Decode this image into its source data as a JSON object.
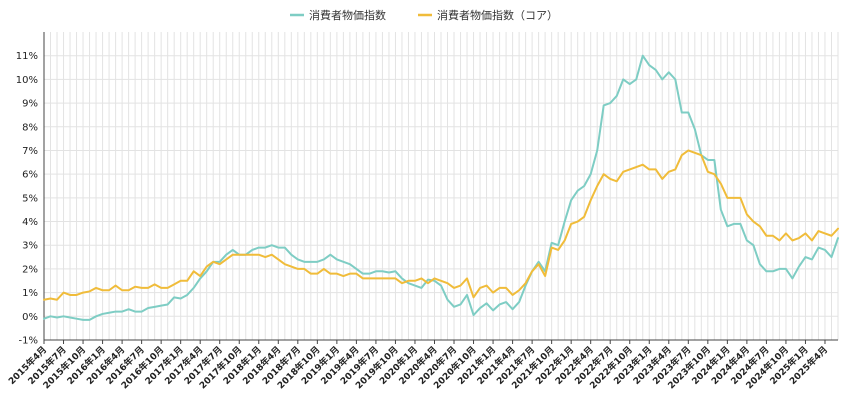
{
  "chart_data": {
    "type": "line",
    "title": "",
    "xlabel": "",
    "ylabel": "",
    "ylim": [
      -1,
      12
    ],
    "y_ticks": [
      -1,
      0,
      1,
      2,
      3,
      4,
      5,
      6,
      7,
      8,
      9,
      10,
      11
    ],
    "y_tick_labels": [
      "-1%",
      "0%",
      "1%",
      "2%",
      "3%",
      "4%",
      "5%",
      "6%",
      "7%",
      "8%",
      "9%",
      "10%",
      "11%"
    ],
    "grid": true,
    "legend_position": "top-center",
    "x_tick_labels": [
      "2015年4月",
      "2015年7月",
      "2015年10月",
      "2016年1月",
      "2016年4月",
      "2016年7月",
      "2016年10月",
      "2017年1月",
      "2017年4月",
      "2017年7月",
      "2017年10月",
      "2018年1月",
      "2018年4月",
      "2018年7月",
      "2018年10月",
      "2019年1月",
      "2019年4月",
      "2019年7月",
      "2019年10月",
      "2020年1月",
      "2020年4月",
      "2020年7月",
      "2020年10月",
      "2021年1月",
      "2021年4月",
      "2021年7月",
      "2021年10月",
      "2022年1月",
      "2022年4月",
      "2022年7月",
      "2022年10月",
      "2023年1月",
      "2023年4月",
      "2023年7月",
      "2023年10月",
      "2024年1月",
      "2024年4月",
      "2024年7月",
      "2024年10月",
      "2025年1月",
      "2025年4月"
    ],
    "series": [
      {
        "name": "消費者物価指数",
        "color": "#7ecdc4",
        "values": [
          -0.1,
          0.0,
          -0.05,
          0.0,
          -0.05,
          -0.1,
          -0.15,
          -0.15,
          0.0,
          0.1,
          0.15,
          0.2,
          0.2,
          0.3,
          0.2,
          0.2,
          0.35,
          0.4,
          0.45,
          0.5,
          0.8,
          0.75,
          0.9,
          1.2,
          1.6,
          1.9,
          2.3,
          2.3,
          2.6,
          2.8,
          2.6,
          2.6,
          2.8,
          2.9,
          2.9,
          3.0,
          2.9,
          2.9,
          2.6,
          2.4,
          2.3,
          2.3,
          2.3,
          2.4,
          2.6,
          2.4,
          2.3,
          2.2,
          2.0,
          1.8,
          1.8,
          1.9,
          1.9,
          1.85,
          1.9,
          1.6,
          1.4,
          1.3,
          1.2,
          1.55,
          1.5,
          1.3,
          0.7,
          0.4,
          0.5,
          0.9,
          0.05,
          0.35,
          0.55,
          0.25,
          0.5,
          0.6,
          0.3,
          0.6,
          1.3,
          1.9,
          2.3,
          1.9,
          3.1,
          3.0,
          4.0,
          4.9,
          5.3,
          5.5,
          6.0,
          7.0,
          8.9,
          9.0,
          9.3,
          10.0,
          9.8,
          10.0,
          11.0,
          10.6,
          10.4,
          10.0,
          10.3,
          10.0,
          8.6,
          8.6,
          7.9,
          6.8,
          6.6,
          6.6,
          4.5,
          3.8,
          3.9,
          3.9,
          3.2,
          3.0,
          2.2,
          1.9,
          1.9,
          2.0,
          2.0,
          1.6,
          2.1,
          2.5,
          2.4,
          2.9,
          2.8,
          2.5,
          3.3
        ]
      },
      {
        "name": "消費者物価指数（コア）",
        "color": "#f0bc3a",
        "values": [
          0.7,
          0.75,
          0.7,
          1.0,
          0.9,
          0.9,
          1.0,
          1.05,
          1.2,
          1.1,
          1.1,
          1.3,
          1.1,
          1.1,
          1.25,
          1.2,
          1.2,
          1.35,
          1.2,
          1.2,
          1.35,
          1.5,
          1.5,
          1.9,
          1.7,
          2.1,
          2.3,
          2.2,
          2.4,
          2.6,
          2.6,
          2.6,
          2.6,
          2.6,
          2.5,
          2.6,
          2.4,
          2.2,
          2.1,
          2.0,
          2.0,
          1.8,
          1.8,
          2.0,
          1.8,
          1.8,
          1.7,
          1.8,
          1.8,
          1.6,
          1.6,
          1.6,
          1.6,
          1.6,
          1.6,
          1.4,
          1.5,
          1.5,
          1.6,
          1.4,
          1.6,
          1.5,
          1.4,
          1.2,
          1.3,
          1.6,
          0.8,
          1.2,
          1.3,
          1.0,
          1.2,
          1.2,
          0.9,
          1.1,
          1.4,
          1.9,
          2.2,
          1.7,
          2.9,
          2.8,
          3.2,
          3.9,
          4.0,
          4.2,
          4.9,
          5.5,
          6.0,
          5.8,
          5.7,
          6.1,
          6.2,
          6.3,
          6.4,
          6.2,
          6.2,
          5.8,
          6.1,
          6.2,
          6.8,
          7.0,
          6.9,
          6.8,
          6.1,
          6.0,
          5.6,
          5.0,
          5.0,
          5.0,
          4.3,
          4.0,
          3.8,
          3.4,
          3.4,
          3.2,
          3.5,
          3.2,
          3.3,
          3.5,
          3.2,
          3.6,
          3.5,
          3.4,
          3.7
        ]
      }
    ]
  }
}
